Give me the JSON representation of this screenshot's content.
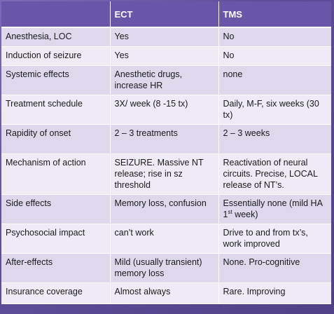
{
  "table": {
    "headers": [
      "",
      "ECT",
      "TMS"
    ],
    "rows": [
      {
        "label": "Anesthesia, LOC",
        "ect": "Yes",
        "tms": "No"
      },
      {
        "label": "Induction of seizure",
        "ect": "Yes",
        "tms": "No"
      },
      {
        "label": "Systemic effects",
        "ect": "Anesthetic drugs, increase HR",
        "tms": "none"
      },
      {
        "label": "Treatment schedule",
        "ect": "3X/ week (8 -15 tx)",
        "tms": "Daily, M-F, six weeks (30 tx)"
      },
      {
        "label": "Rapidity of onset",
        "ect": "2 – 3 treatments",
        "tms": "2 – 3 weeks"
      },
      {
        "label": "Mechanism of action",
        "ect": "SEIZURE.  Massive NT release; rise in sz threshold",
        "tms": "Reactivation of neural circuits. Precise, LOCAL release of NT’s."
      },
      {
        "label": "Side effects",
        "ect": "Memory loss, confusion",
        "tms_pre": "Essentially none (mild HA 1",
        "tms_sup": "st",
        "tms_post": " week)"
      },
      {
        "label": "Psychosocial impact",
        "ect": "can’t work",
        "tms": "Drive to and from tx’s, work improved"
      },
      {
        "label": "After-effects",
        "ect": "Mild (usually transient) memory loss",
        "tms": "None.  Pro-cognitive"
      },
      {
        "label": "Insurance coverage",
        "ect": "Almost always",
        "tms": "Rare.  Improving"
      }
    ]
  }
}
